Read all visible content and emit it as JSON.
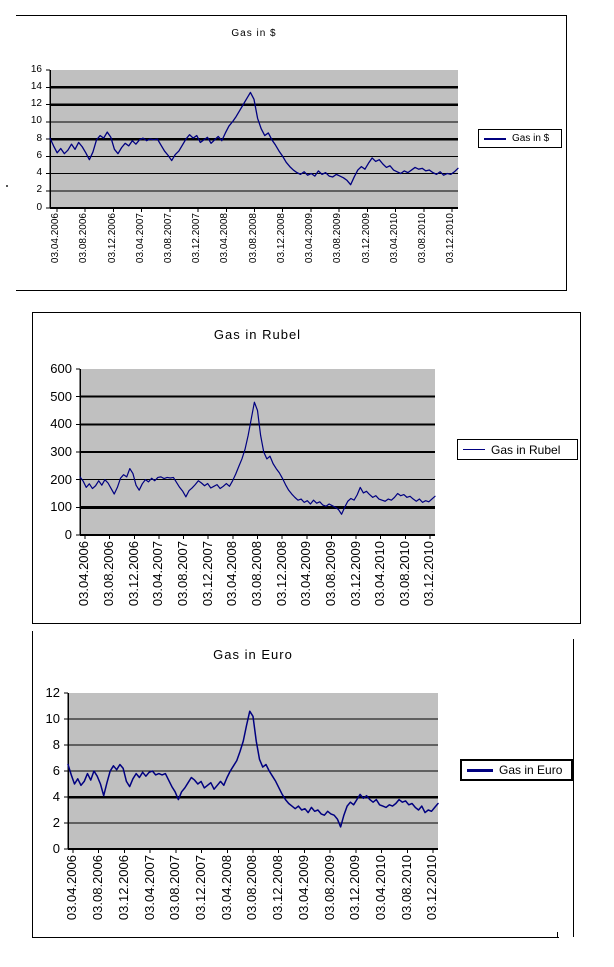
{
  "page": {
    "background": "#ffffff"
  },
  "colors": {
    "series": "#000080",
    "plot_background": "#c0c0c0",
    "grid": "#000000",
    "text": "#000000"
  },
  "chart_data": [
    {
      "type": "line",
      "title": "Gas in $",
      "ylim": [
        0,
        16
      ],
      "yticks": [
        16,
        14,
        12,
        10,
        8,
        6,
        4,
        2,
        0
      ],
      "emphasized_gridlines": [
        14,
        12,
        8
      ],
      "grid": true,
      "legend_position": "right",
      "plot_background": "#c0c0c0",
      "x_labels": [
        "03.04.2006",
        "03.08.2006",
        "03.12.2006",
        "03.04.2007",
        "03.08.2007",
        "03.12.2007",
        "03.04.2008",
        "03.08.2008",
        "03.12.2008",
        "03.04.2009",
        "03.08.2009",
        "03.12.2009",
        "03.04.2010",
        "03.08.2010",
        "03.12.2010"
      ],
      "series": [
        {
          "name": "Gas in $",
          "color": "#000080",
          "values": [
            8.1,
            7.2,
            6.4,
            6.9,
            6.3,
            6.7,
            7.4,
            6.8,
            7.6,
            7.1,
            6.4,
            5.6,
            6.5,
            7.9,
            8.4,
            8.1,
            8.8,
            8.2,
            6.8,
            6.3,
            7.0,
            7.5,
            7.2,
            7.8,
            7.4,
            7.9,
            8.1,
            7.8,
            8.0,
            7.9,
            8.0,
            7.3,
            6.6,
            6.1,
            5.5,
            6.2,
            6.6,
            7.3,
            8.0,
            8.5,
            8.1,
            8.4,
            7.6,
            7.9,
            8.2,
            7.5,
            7.9,
            8.3,
            7.8,
            8.7,
            9.5,
            10.0,
            10.6,
            11.3,
            12.0,
            12.7,
            13.4,
            12.6,
            10.4,
            9.2,
            8.4,
            8.7,
            7.9,
            7.3,
            6.6,
            6.0,
            5.3,
            4.8,
            4.4,
            4.1,
            3.9,
            4.2,
            3.8,
            4.0,
            3.7,
            4.3,
            3.9,
            4.1,
            3.7,
            3.6,
            3.9,
            3.7,
            3.5,
            3.2,
            2.7,
            3.6,
            4.4,
            4.8,
            4.5,
            5.2,
            5.8,
            5.4,
            5.6,
            5.1,
            4.7,
            4.9,
            4.4,
            4.2,
            4.0,
            4.3,
            4.1,
            4.4,
            4.7,
            4.5,
            4.6,
            4.3,
            4.4,
            4.1,
            3.9,
            4.2,
            3.8,
            4.0,
            3.9,
            4.2,
            4.6
          ]
        }
      ]
    },
    {
      "type": "line",
      "title": "Gas in Rubel",
      "ylim": [
        0,
        600
      ],
      "yticks": [
        600,
        500,
        400,
        300,
        200,
        100,
        0
      ],
      "emphasized_gridlines": [
        100
      ],
      "grid": true,
      "legend_position": "right",
      "plot_background": "#c0c0c0",
      "x_labels": [
        "03.04.2006",
        "03.08.2006",
        "03.12.2006",
        "03.04.2007",
        "03.08.2007",
        "03.12.2007",
        "03.04.2008",
        "03.08.2008",
        "03.12.2008",
        "03.04.2009",
        "03.08.2009",
        "03.12.2009",
        "03.04.2010",
        "03.08.2010",
        "03.12.2010"
      ],
      "series": [
        {
          "name": "Gas in Rubel",
          "color": "#000080",
          "values": [
            210,
            195,
            172,
            185,
            168,
            178,
            196,
            180,
            200,
            188,
            168,
            148,
            172,
            205,
            218,
            210,
            240,
            222,
            180,
            162,
            185,
            200,
            192,
            205,
            196,
            208,
            210,
            204,
            208,
            206,
            208,
            190,
            172,
            158,
            138,
            160,
            170,
            182,
            196,
            188,
            178,
            186,
            170,
            176,
            182,
            168,
            176,
            186,
            176,
            196,
            220,
            248,
            275,
            310,
            360,
            420,
            480,
            450,
            360,
            300,
            275,
            285,
            258,
            240,
            225,
            205,
            182,
            162,
            148,
            136,
            126,
            130,
            118,
            124,
            112,
            126,
            115,
            120,
            108,
            104,
            112,
            106,
            100,
            92,
            75,
            100,
            122,
            132,
            126,
            145,
            172,
            152,
            158,
            146,
            136,
            142,
            130,
            126,
            122,
            130,
            126,
            136,
            150,
            142,
            146,
            136,
            140,
            130,
            122,
            130,
            118,
            124,
            120,
            130,
            140
          ]
        }
      ]
    },
    {
      "type": "line",
      "title": "Gas in Euro",
      "ylim": [
        0,
        12
      ],
      "yticks": [
        12,
        10,
        8,
        6,
        4,
        2,
        0
      ],
      "emphasized_gridlines": [
        4
      ],
      "grid": true,
      "legend_position": "right",
      "plot_background": "#c0c0c0",
      "x_labels": [
        "03.04.2006",
        "03.08.2006",
        "03.12.2006",
        "03.04.2007",
        "03.08.2007",
        "03.12.2007",
        "03.04.2008",
        "03.08.2008",
        "03.12.2008",
        "03.04.2009",
        "03.08.2009",
        "03.12.2009",
        "03.04.2010",
        "03.08.2010",
        "03.12.2010"
      ],
      "series": [
        {
          "name": "Gas in Euro",
          "color": "#000080",
          "values": [
            6.5,
            5.7,
            5.0,
            5.4,
            4.9,
            5.2,
            5.8,
            5.3,
            6.0,
            5.6,
            5.0,
            4.1,
            5.1,
            6.0,
            6.4,
            6.1,
            6.5,
            6.2,
            5.2,
            4.8,
            5.4,
            5.8,
            5.5,
            5.9,
            5.6,
            5.9,
            6.0,
            5.7,
            5.8,
            5.7,
            5.8,
            5.3,
            4.8,
            4.4,
            3.8,
            4.4,
            4.7,
            5.1,
            5.5,
            5.3,
            5.0,
            5.2,
            4.7,
            4.9,
            5.1,
            4.6,
            4.9,
            5.2,
            4.9,
            5.5,
            6.0,
            6.4,
            6.8,
            7.5,
            8.3,
            9.5,
            10.6,
            10.2,
            8.3,
            6.9,
            6.3,
            6.5,
            6.0,
            5.6,
            5.2,
            4.7,
            4.2,
            3.8,
            3.5,
            3.3,
            3.1,
            3.3,
            3.0,
            3.1,
            2.8,
            3.2,
            2.9,
            3.0,
            2.7,
            2.6,
            2.9,
            2.7,
            2.6,
            2.3,
            1.7,
            2.6,
            3.3,
            3.6,
            3.4,
            3.8,
            4.2,
            3.9,
            4.1,
            3.8,
            3.6,
            3.8,
            3.4,
            3.3,
            3.2,
            3.4,
            3.3,
            3.5,
            3.8,
            3.6,
            3.7,
            3.4,
            3.5,
            3.2,
            3.0,
            3.3,
            2.8,
            3.0,
            2.9,
            3.2,
            3.5
          ]
        }
      ]
    }
  ]
}
